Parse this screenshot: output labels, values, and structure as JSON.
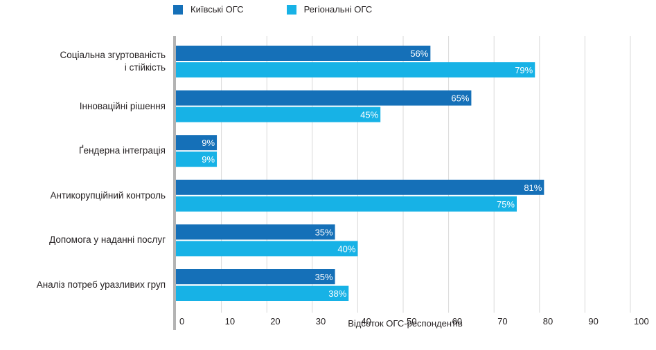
{
  "chart_data": {
    "type": "bar",
    "orientation": "horizontal",
    "categories": [
      "Соціальна згуртованість\nі стійкість",
      "Інноваційні рішення",
      "Ґендерна інтеграція",
      "Антикорупційний контроль",
      "Допомога у наданні послуг",
      "Аналіз потреб уразливих груп"
    ],
    "series": [
      {
        "name": "Київські ОГС",
        "values": [
          56,
          65,
          9,
          81,
          35,
          35
        ],
        "color": "#1570b8"
      },
      {
        "name": "Регіональні ОГС",
        "values": [
          79,
          45,
          9,
          75,
          40,
          38
        ],
        "color": "#17b2e6"
      }
    ],
    "value_suffix": "%",
    "xlabel": "Відсоток ОГС-респондентів",
    "ylabel": "",
    "title": "",
    "xlim": [
      0,
      100
    ],
    "xticks": [
      0,
      10,
      20,
      30,
      40,
      50,
      60,
      70,
      80,
      90,
      100
    ],
    "grid": true,
    "legend_position": "top"
  }
}
